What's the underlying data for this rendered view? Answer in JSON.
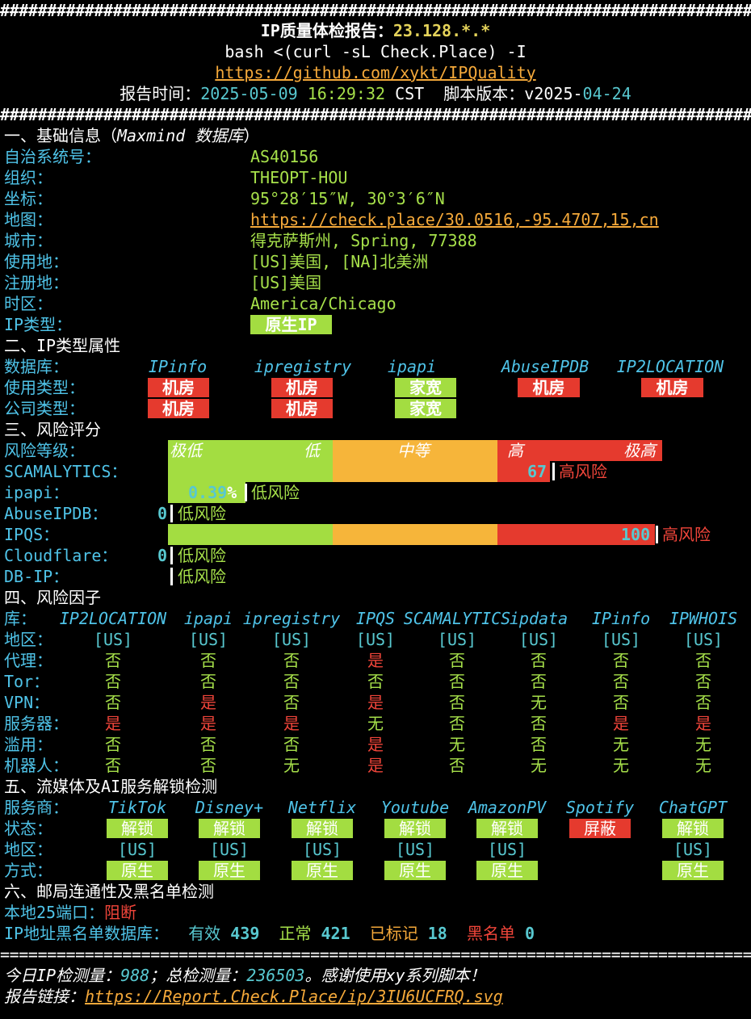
{
  "header": {
    "hashes": "###########################################################################################",
    "title_prefix": "IP质量体检报告：",
    "title_ip": "23.128.*.*",
    "command": "bash <(curl -sL Check.Place) -I",
    "repo_link": "https://github.com/xykt/IPQuality",
    "report_time_label": "报告时间：",
    "date": "2025-05-09",
    "time": "16:29:32",
    "tz": "CST",
    "script_version_label": "脚本版本：",
    "version_prefix": "v2025-",
    "version_suffix": "04-24"
  },
  "basic": {
    "heading_prefix": "一、基础信息（",
    "heading_db": "Maxmind 数据库",
    "heading_suffix": "）",
    "rows": [
      {
        "label": "自治系统号：",
        "value": "AS40156"
      },
      {
        "label": "组织：",
        "value": "THEOPT-HOU"
      },
      {
        "label": "坐标：",
        "value": "95°28′15″W, 30°3′6″N"
      },
      {
        "label": "地图：",
        "value": "https://check.place/30.0516,-95.4707,15,cn"
      },
      {
        "label": "城市：",
        "value": "得克萨斯州, Spring, 77388"
      },
      {
        "label": "使用地：",
        "value": "[US]美国, [NA]北美洲"
      },
      {
        "label": "注册地：",
        "value": "[US]美国"
      },
      {
        "label": "时区：",
        "value": "America/Chicago"
      }
    ],
    "ip_type_label": "IP类型：",
    "ip_type_value": "原生IP"
  },
  "iptype": {
    "heading": "二、IP类型属性",
    "db_label": "数据库：",
    "dbs": [
      "IPinfo",
      "ipregistry",
      "ipapi",
      "AbuseIPDB",
      "IP2LOCATION"
    ],
    "usage_label": "使用类型：",
    "usage": [
      "机房",
      "机房",
      "家宽",
      "机房",
      "机房"
    ],
    "company_label": "公司类型：",
    "company": [
      "机房",
      "机房",
      "家宽"
    ],
    "colors": {
      "datacenter": "#e53a2e",
      "residential": "#a3dd41"
    }
  },
  "risk": {
    "heading": "三、风险评分",
    "level_label": "风险等级：",
    "levels": [
      "极低",
      "低",
      "中等",
      "高",
      "极高"
    ],
    "scamalytics_label": "SCAMALYTICS：",
    "scamalytics_score": "67",
    "scamalytics_level": "高风险",
    "ipapi_label": "ipapi：",
    "ipapi_score": "0.39",
    "ipapi_pct": "%",
    "ipapi_level": "低风险",
    "abuseipdb_label": "AbuseIPDB：",
    "abuseipdb_score": "0",
    "abuseipdb_level": "低风险",
    "ipqs_label": "IPQS：",
    "ipqs_score": "100",
    "ipqs_level": "高风险",
    "cloudflare_label": "Cloudflare：",
    "cloudflare_score": "0",
    "cloudflare_level": "低风险",
    "dbip_label": "DB-IP：",
    "dbip_level": "低风险"
  },
  "factors": {
    "heading": "四、风险因子",
    "db_label": "库：",
    "dbs": [
      "IP2LOCATION",
      "ipapi",
      "ipregistry",
      "IPQS",
      "SCAMALYTICS",
      "ipdata",
      "IPinfo",
      "IPWHOIS"
    ],
    "rows": [
      {
        "label": "地区：",
        "values": [
          "[US]",
          "[US]",
          "[US]",
          "[US]",
          "[US]",
          "[US]",
          "[US]",
          "[US]"
        ]
      },
      {
        "label": "代理：",
        "values": [
          "否",
          "否",
          "否",
          "是",
          "否",
          "否",
          "否",
          "否"
        ]
      },
      {
        "label": "Tor：",
        "values": [
          "否",
          "否",
          "否",
          "否",
          "否",
          "否",
          "否",
          "否"
        ]
      },
      {
        "label": "VPN：",
        "values": [
          "否",
          "是",
          "否",
          "是",
          "否",
          "无",
          "否",
          "否"
        ]
      },
      {
        "label": "服务器：",
        "values": [
          "是",
          "是",
          "是",
          "无",
          "否",
          "否",
          "是",
          "是"
        ]
      },
      {
        "label": "滥用：",
        "values": [
          "否",
          "否",
          "否",
          "是",
          "无",
          "否",
          "无",
          "无"
        ]
      },
      {
        "label": "机器人：",
        "values": [
          "否",
          "否",
          "无",
          "是",
          "否",
          "无",
          "无",
          "无"
        ]
      }
    ]
  },
  "streaming": {
    "heading": "五、流媒体及AI服务解锁检测",
    "provider_label": "服务商：",
    "providers": [
      "TikTok",
      "Disney+",
      "Netflix",
      "Youtube",
      "AmazonPV",
      "Spotify",
      "ChatGPT"
    ],
    "status_label": "状态：",
    "status": [
      "解锁",
      "解锁",
      "解锁",
      "解锁",
      "解锁",
      "屏蔽",
      "解锁"
    ],
    "region_label": "地区：",
    "region": [
      "[US]",
      "[US]",
      "[US]",
      "[US]",
      "[US]",
      "",
      "[US]"
    ],
    "method_label": "方式：",
    "method": [
      "原生",
      "原生",
      "原生",
      "原生",
      "原生",
      "",
      "原生"
    ]
  },
  "mail": {
    "heading": "六、邮局连通性及黑名单检测",
    "port_label": "本地25端口：",
    "port_value": "阻断",
    "bl_label": "IP地址黑名单数据库：",
    "valid_label": "有效",
    "valid": "439",
    "normal_label": "正常",
    "normal": "421",
    "marked_label": "已标记",
    "marked": "18",
    "black_label": "黑名单",
    "black": "0"
  },
  "footer": {
    "equals": "===========================================================================================",
    "stats_1": "今日IP检测量：",
    "today": "988",
    "stats_2": "；总检测量：",
    "total": "236503",
    "stats_3": "。感谢使用xy系列脚本！",
    "link_label": "报告链接：",
    "link": "https://Report.Check.Place/ip/3IU6UCFRQ.svg"
  }
}
